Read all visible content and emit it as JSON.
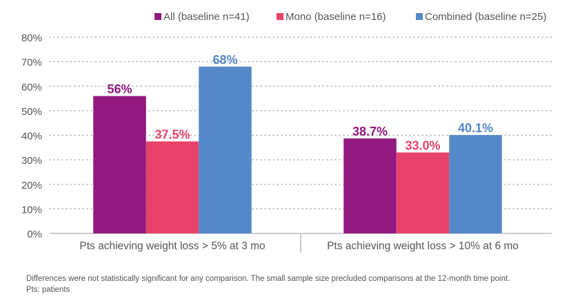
{
  "chart_data": {
    "type": "bar",
    "categories": [
      "Pts achieving weight loss > 5% at 3 mo",
      "Pts achieving weight loss > 10% at 6 mo"
    ],
    "series": [
      {
        "name": "All (baseline n=41)",
        "values": [
          56,
          38.7
        ],
        "labels": [
          "56%",
          "38.7%"
        ],
        "color": "#92197f"
      },
      {
        "name": "Mono (baseline n=16)",
        "values": [
          37.5,
          33.0
        ],
        "labels": [
          "37.5%",
          "33.0%"
        ],
        "color": "#e8426b"
      },
      {
        "name": "Combined (baseline n=25)",
        "values": [
          68,
          40.1
        ],
        "labels": [
          "68%",
          "40.1%"
        ],
        "color": "#5588c8"
      }
    ],
    "ylim": [
      0,
      80
    ],
    "yticks": [
      "0%",
      "10%",
      "20%",
      "30%",
      "40%",
      "50%",
      "60%",
      "70%",
      "80%"
    ],
    "grid": "dotted horizontal",
    "legend_position": "top-right"
  },
  "footnotes": [
    "Differences were not statistically significant for any comparison. The small sample size precluded comparisons at the 12-month time point.",
    "Pts: patients"
  ]
}
